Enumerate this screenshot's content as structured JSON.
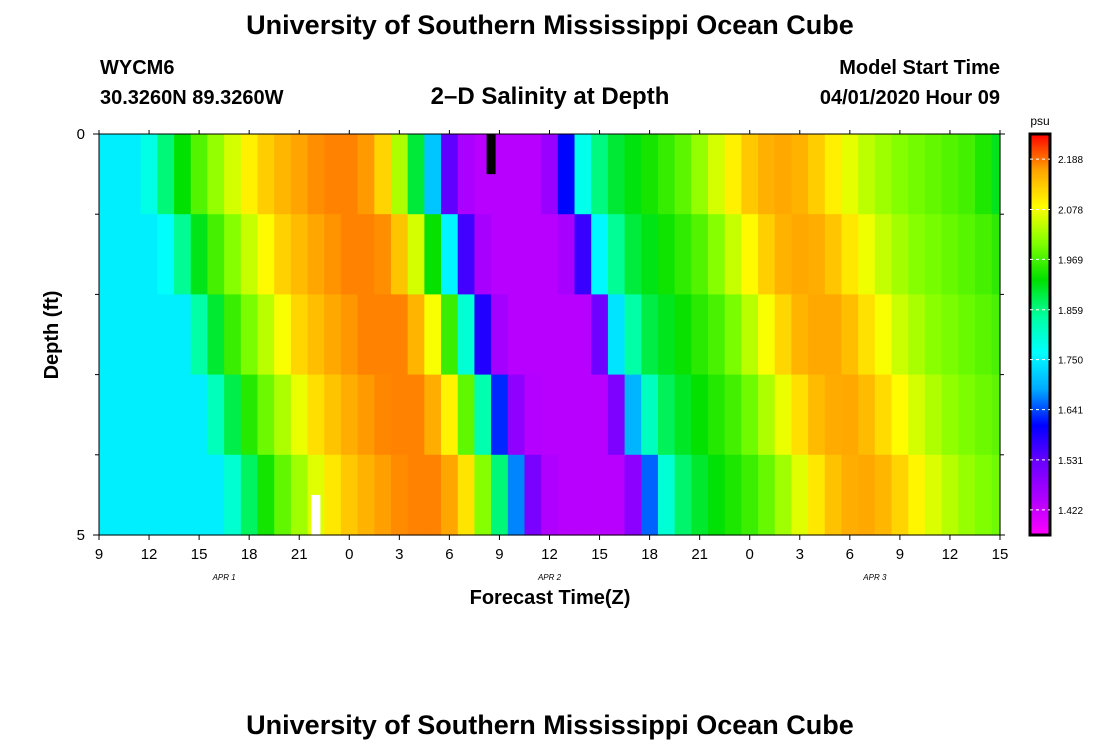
{
  "header": {
    "title": "University of Southern Mississippi Ocean Cube",
    "station": "WYCM6",
    "coords": "30.3260N 89.3260W",
    "subtitle": "2–D Salinity at Depth",
    "start_label": "Model Start Time",
    "start_value": "04/01/2020 Hour 09"
  },
  "footer": {
    "title": "University of Southern Mississippi Ocean Cube"
  },
  "chart_data": {
    "type": "heatmap",
    "title": "2–D Salinity at Depth",
    "xlabel": "Forecast Time(Z)",
    "ylabel": "Depth (ft)",
    "units": "psu",
    "x_hours": [
      0,
      1,
      2,
      3,
      4,
      5,
      6,
      7,
      8,
      9,
      10,
      11,
      12,
      13,
      14,
      15,
      16,
      17,
      18,
      19,
      20,
      21,
      22,
      23,
      24,
      25,
      26,
      27,
      28,
      29,
      30,
      31,
      32,
      33,
      34,
      35,
      36,
      37,
      38,
      39,
      40,
      41,
      42,
      43,
      44,
      45,
      46,
      47,
      48,
      49,
      50,
      51,
      52,
      53,
      54
    ],
    "x_start": "Apr 1 09Z",
    "xlim_hours": [
      0,
      54
    ],
    "x_ticks": [
      {
        "hour": 0,
        "label": "9"
      },
      {
        "hour": 3,
        "label": "12"
      },
      {
        "hour": 6,
        "label": "15"
      },
      {
        "hour": 9,
        "label": "18"
      },
      {
        "hour": 12,
        "label": "21"
      },
      {
        "hour": 15,
        "label": "0"
      },
      {
        "hour": 18,
        "label": "3"
      },
      {
        "hour": 21,
        "label": "6"
      },
      {
        "hour": 24,
        "label": "9"
      },
      {
        "hour": 27,
        "label": "12"
      },
      {
        "hour": 30,
        "label": "15"
      },
      {
        "hour": 33,
        "label": "18"
      },
      {
        "hour": 36,
        "label": "21"
      },
      {
        "hour": 39,
        "label": "0"
      },
      {
        "hour": 42,
        "label": "3"
      },
      {
        "hour": 45,
        "label": "6"
      },
      {
        "hour": 48,
        "label": "9"
      },
      {
        "hour": 51,
        "label": "12"
      },
      {
        "hour": 54,
        "label": "15"
      }
    ],
    "date_labels": [
      {
        "hour": 7.5,
        "label": "APR 1"
      },
      {
        "hour": 27,
        "label": "APR 2"
      },
      {
        "hour": 46.5,
        "label": "APR 3"
      }
    ],
    "depth_levels": [
      0,
      1,
      2,
      3,
      4,
      5
    ],
    "ylim": [
      0,
      5
    ],
    "y_ticks": [
      {
        "value": 0,
        "label": "0"
      },
      {
        "value": 5,
        "label": "5"
      }
    ],
    "y_minor_ticks": [
      1,
      2,
      3,
      4
    ],
    "profile": [
      1.75,
      1.75,
      1.75,
      1.84,
      1.9,
      1.96,
      2.0,
      2.04,
      2.08,
      2.12,
      2.14,
      2.16,
      2.17,
      2.18,
      2.18,
      2.18,
      2.15,
      2.08,
      1.96,
      1.8,
      1.58,
      1.46,
      1.44,
      1.44,
      1.44,
      1.44,
      1.44,
      1.52,
      1.74,
      1.84,
      1.89,
      1.91,
      1.93,
      1.95,
      1.97,
      2.0,
      2.04,
      2.08,
      2.12,
      2.15,
      2.16,
      2.16,
      2.14,
      2.11,
      2.08,
      2.05,
      2.03,
      2.01,
      2.0,
      1.99,
      1.98,
      1.97,
      1.96,
      1.92,
      1.9
    ],
    "shift_hours_per_ft": 1.2,
    "missing": [
      {
        "hour": 23.5,
        "depth_from": 0,
        "depth_to": 0.5,
        "color": "#000000"
      },
      {
        "hour": 13,
        "depth_from": 4.5,
        "depth_to": 5,
        "color": "#ffffff"
      }
    ],
    "colorbar": {
      "min": 1.367,
      "max": 2.243,
      "labels": [
        "1.422",
        "1.531",
        "1.641",
        "1.750",
        "1.859",
        "1.969",
        "2.078",
        "2.188"
      ],
      "stops": [
        "#ff00ff",
        "#b000ff",
        "#6a00ff",
        "#0000ff",
        "#00aaff",
        "#00ffff",
        "#00ffa0",
        "#00e000",
        "#80ff00",
        "#ffff00",
        "#ffa500",
        "#ff0000"
      ]
    }
  }
}
